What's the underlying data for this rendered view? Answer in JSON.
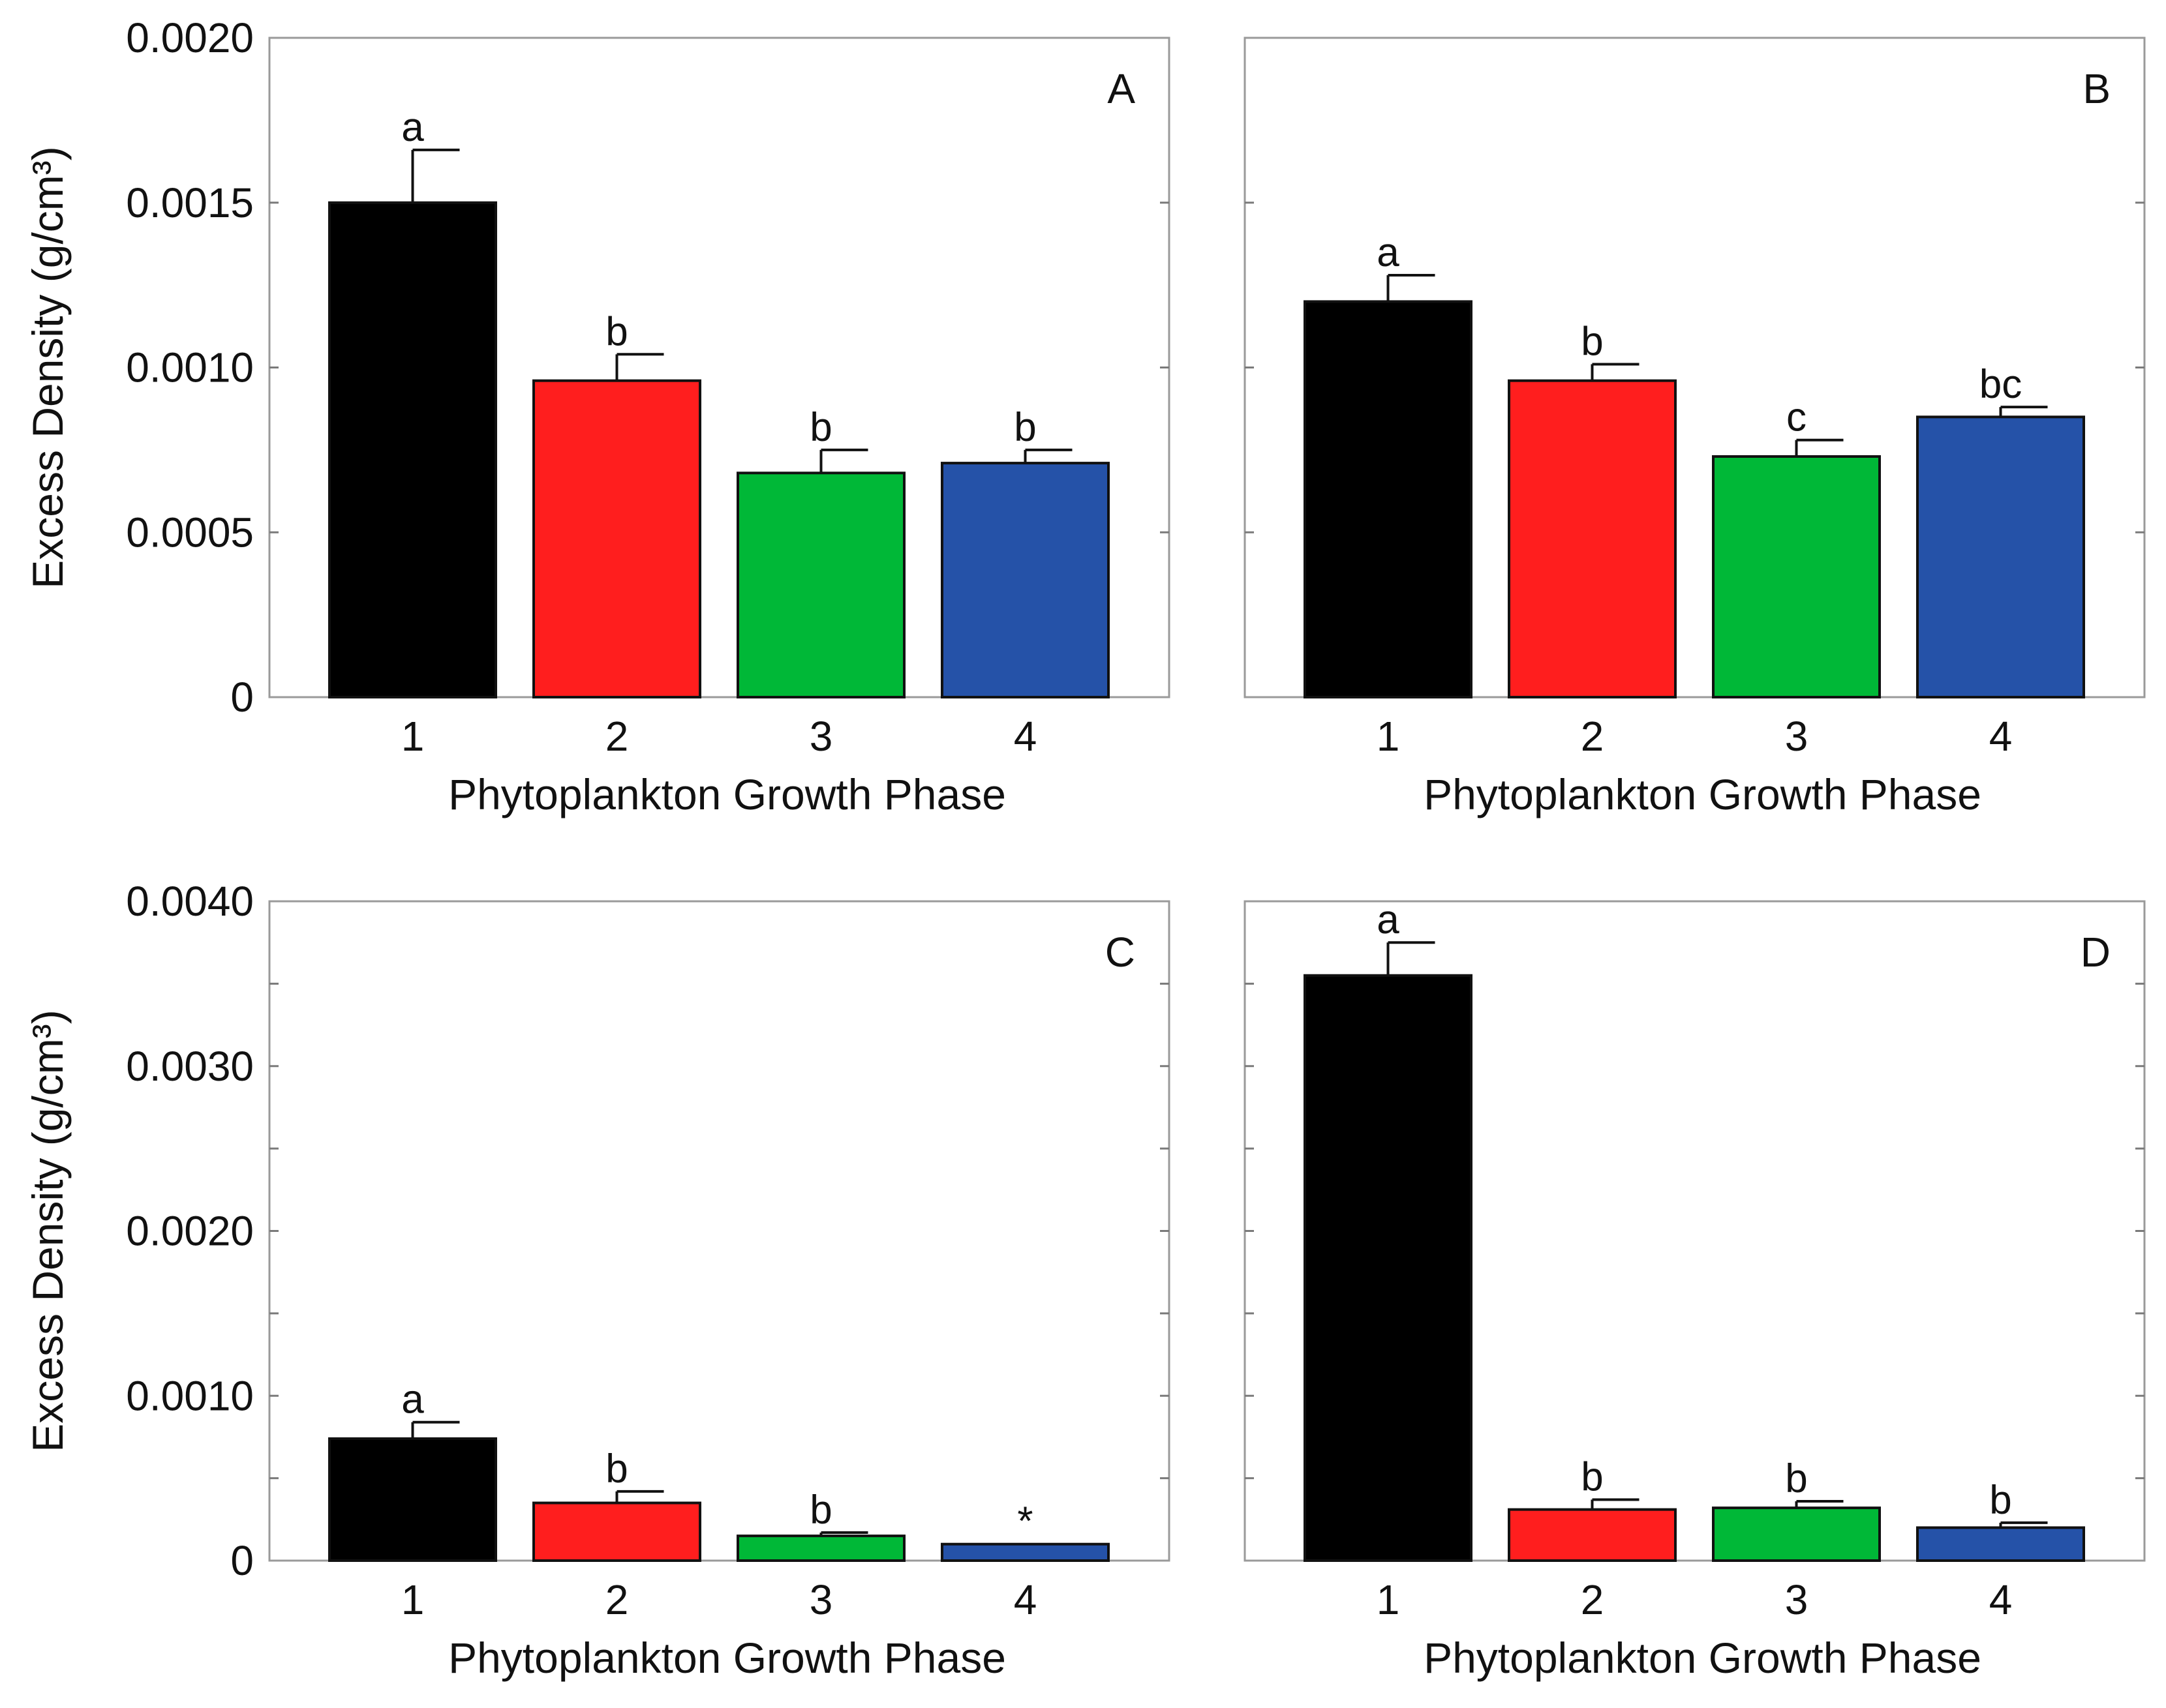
{
  "chart_data": [
    {
      "panel": "A",
      "type": "bar",
      "categories": [
        "1",
        "2",
        "3",
        "4"
      ],
      "values": [
        0.0015,
        0.00096,
        0.00068,
        0.00071
      ],
      "errors": [
        0.00016,
        8e-05,
        7e-05,
        4e-05
      ],
      "significance": [
        "a",
        "b",
        "b",
        "b"
      ],
      "colors": [
        "#000000",
        "#ff1e1e",
        "#00b837",
        "#2552a8"
      ],
      "xlabel": "Phytoplankton Growth Phase",
      "ylabel": "Excess Density (g/cm³)",
      "ylim": [
        0,
        0.002
      ],
      "yticks": [
        0,
        0.0005,
        0.001,
        0.0015,
        0.002
      ],
      "yticklabels": [
        "0",
        "0.0005",
        "0.0010",
        "0.0015",
        "0.0020"
      ],
      "show_ylabel": true
    },
    {
      "panel": "B",
      "type": "bar",
      "categories": [
        "1",
        "2",
        "3",
        "4"
      ],
      "values": [
        0.0012,
        0.00096,
        0.00073,
        0.00085
      ],
      "errors": [
        8e-05,
        5e-05,
        5e-05,
        3e-05
      ],
      "significance": [
        "a",
        "b",
        "c",
        "bc"
      ],
      "colors": [
        "#000000",
        "#ff1e1e",
        "#00b837",
        "#2552a8"
      ],
      "xlabel": "Phytoplankton Growth Phase",
      "ylabel": "",
      "ylim": [
        0,
        0.002
      ],
      "yticks": [
        0,
        0.0005,
        0.001,
        0.0015,
        0.002
      ],
      "yticklabels": [],
      "show_ylabel": false
    },
    {
      "panel": "C",
      "type": "bar",
      "categories": [
        "1",
        "2",
        "3",
        "4"
      ],
      "values": [
        0.00074,
        0.00035,
        0.00015,
        0.0001
      ],
      "errors": [
        0.0001,
        7e-05,
        2e-05,
        0.0
      ],
      "significance": [
        "a",
        "b",
        "b",
        "*"
      ],
      "colors": [
        "#000000",
        "#ff1e1e",
        "#00b837",
        "#2552a8"
      ],
      "xlabel": "Phytoplankton Growth Phase",
      "ylabel": "Excess Density (g/cm³)",
      "ylim": [
        0,
        0.004
      ],
      "yticks": [
        0,
        0.0005,
        0.001,
        0.0015,
        0.002,
        0.0025,
        0.003,
        0.0035,
        0.004
      ],
      "yticklabels": [
        "0",
        "",
        "0.0010",
        "",
        "0.0020",
        "",
        "0.0030",
        "",
        "0.0040"
      ],
      "show_ylabel": true
    },
    {
      "panel": "D",
      "type": "bar",
      "categories": [
        "1",
        "2",
        "3",
        "4"
      ],
      "values": [
        0.00355,
        0.00031,
        0.00032,
        0.0002
      ],
      "errors": [
        0.0002,
        6e-05,
        4e-05,
        3e-05
      ],
      "significance": [
        "a",
        "b",
        "b",
        "b"
      ],
      "colors": [
        "#000000",
        "#ff1e1e",
        "#00b837",
        "#2552a8"
      ],
      "xlabel": "Phytoplankton Growth Phase",
      "ylabel": "",
      "ylim": [
        0,
        0.004
      ],
      "yticks": [
        0,
        0.0005,
        0.001,
        0.0015,
        0.002,
        0.0025,
        0.003,
        0.0035,
        0.004
      ],
      "yticklabels": [],
      "show_ylabel": false
    }
  ]
}
